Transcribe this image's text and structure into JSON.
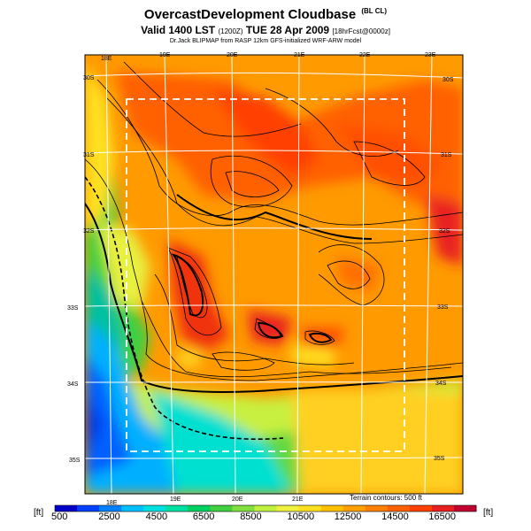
{
  "header": {
    "title": "OvercastDevelopment Cloudbase",
    "title_tag": "(BL CL)",
    "valid": "Valid 1400 LST",
    "valid_utc": "(1200Z)",
    "valid_date": "TUE 28 Apr 2009",
    "fcst": "[18hrFcst@0000z]",
    "credit": "Dr.Jack BLIPMAP from RASP 12km GFS-initialized WRF-ARW model"
  },
  "map": {
    "lon_labels_top": [
      "18E",
      "19E",
      "20E",
      "21E",
      "22E",
      "23E"
    ],
    "lon_labels_bottom": [
      "18E",
      "19E",
      "20E",
      "21E"
    ],
    "lat_labels_left": [
      "30S",
      "31S",
      "32S",
      "33S",
      "34S",
      "35S"
    ],
    "lat_labels_right": [
      "30S",
      "31S",
      "32S",
      "33S",
      "34S",
      "35S"
    ],
    "terrain_note": "Terrain contours: 500 ft"
  },
  "colorbar": {
    "unit_left": "[ft]",
    "unit_right": "[ft]",
    "tick_labels": [
      "500",
      "2500",
      "4500",
      "6500",
      "8500",
      "10500",
      "12500",
      "14500",
      "16500"
    ],
    "colors": [
      "#0000c8",
      "#0040ff",
      "#0080ff",
      "#00c0ff",
      "#00e0e0",
      "#00e0a0",
      "#00d060",
      "#40d040",
      "#80e040",
      "#c0f040",
      "#f0f040",
      "#ffe020",
      "#ffc000",
      "#ffa000",
      "#ff8000",
      "#ff6000",
      "#ff4000",
      "#e82020",
      "#c00030"
    ]
  }
}
